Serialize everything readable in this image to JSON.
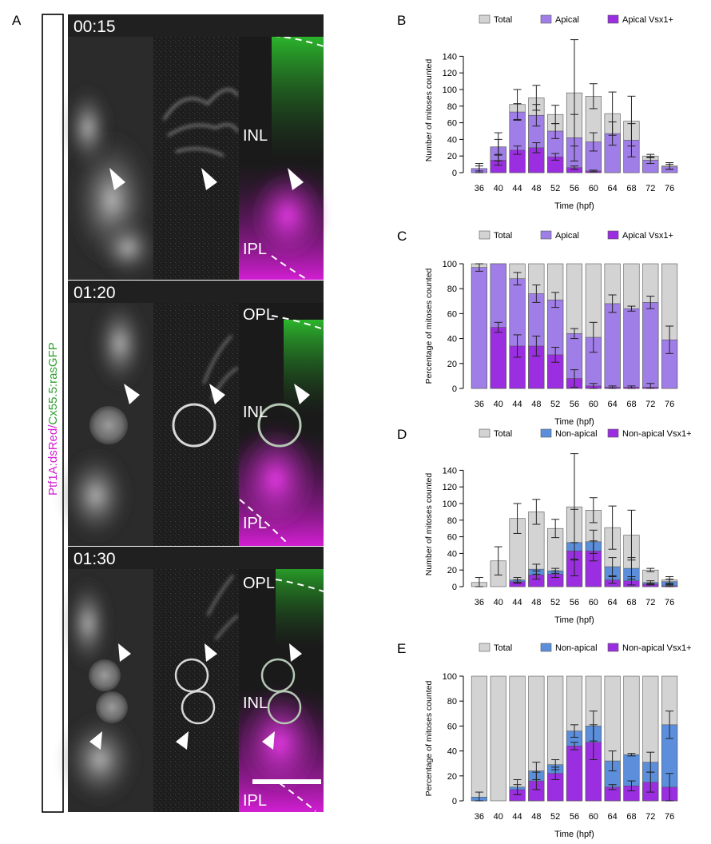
{
  "figure": {
    "panels": [
      "A",
      "B",
      "C",
      "D",
      "E"
    ]
  },
  "micro": {
    "vertical_label": {
      "part1": "Ptf1A:dsRed/",
      "part2": "Cx55.5:rasGFP"
    },
    "rows": [
      {
        "timestamp": "00:15",
        "layers": [
          "INL",
          "IPL"
        ]
      },
      {
        "timestamp": "01:20",
        "layers": [
          "OPL",
          "INL",
          "IPL"
        ]
      },
      {
        "timestamp": "01:30",
        "layers": [
          "OPL",
          "INL",
          "IPL"
        ]
      }
    ],
    "colors": {
      "magenta": "#d21ed2",
      "green": "#2fd02f"
    }
  },
  "chart_data": [
    {
      "panel": "B",
      "type": "bar",
      "categories": [
        "36",
        "40",
        "44",
        "48",
        "52",
        "56",
        "60",
        "64",
        "68",
        "72",
        "76"
      ],
      "series": [
        {
          "name": "Total",
          "color": "#d3d3d3",
          "values": [
            5,
            31,
            82,
            90,
            70,
            96,
            92,
            71,
            62,
            20,
            8
          ],
          "errors": [
            6,
            17,
            18,
            15,
            11,
            64,
            15,
            26,
            30,
            2,
            4
          ]
        },
        {
          "name": "Apical",
          "color": "#a07ee8",
          "values": [
            5,
            31,
            73,
            69,
            50,
            42,
            37,
            47,
            39,
            15,
            7
          ],
          "errors": [
            3,
            9,
            10,
            13,
            9,
            28,
            11,
            14,
            20,
            4,
            3
          ]
        },
        {
          "name": "Apical Vsx1+",
          "color": "#9a2ee0",
          "values": [
            0,
            15,
            27,
            30,
            19,
            6,
            2,
            0,
            0,
            0,
            0
          ],
          "errors": [
            0,
            6,
            5,
            6,
            4,
            2,
            1,
            0,
            0,
            0,
            0
          ]
        }
      ],
      "xlabel": "Time (hpf)",
      "ylabel": "Number of mitoses counted",
      "yticks": [
        0,
        20,
        40,
        60,
        80,
        100,
        120,
        140
      ],
      "ylim": [
        0,
        150
      ],
      "legend": "top"
    },
    {
      "panel": "C",
      "type": "bar",
      "categories": [
        "36",
        "40",
        "44",
        "48",
        "52",
        "56",
        "60",
        "64",
        "68",
        "72",
        "76"
      ],
      "series": [
        {
          "name": "Total",
          "color": "#d3d3d3",
          "values": [
            100,
            100,
            100,
            100,
            100,
            100,
            100,
            100,
            100,
            100,
            100
          ],
          "errors": [
            0,
            0,
            0,
            0,
            0,
            0,
            0,
            0,
            0,
            0,
            0
          ]
        },
        {
          "name": "Apical",
          "color": "#a07ee8",
          "values": [
            97,
            100,
            88,
            76,
            71,
            44,
            41,
            68,
            64,
            69,
            39
          ],
          "errors": [
            3,
            0,
            5,
            7,
            6,
            4,
            12,
            7,
            2,
            5,
            11
          ]
        },
        {
          "name": "Apical Vsx1+",
          "color": "#9a2ee0",
          "values": [
            0,
            49,
            34,
            34,
            27,
            8,
            2,
            1,
            1,
            1,
            0
          ],
          "errors": [
            0,
            4,
            9,
            8,
            6,
            7,
            2,
            1,
            1,
            3,
            0
          ]
        }
      ],
      "xlabel": "Time (hpf)",
      "ylabel": "Percentage of mitoses counted",
      "yticks": [
        0,
        20,
        40,
        60,
        80,
        100
      ],
      "ylim": [
        0,
        100
      ],
      "legend": "top"
    },
    {
      "panel": "D",
      "type": "bar",
      "categories": [
        "36",
        "40",
        "44",
        "48",
        "52",
        "56",
        "60",
        "64",
        "68",
        "72",
        "76"
      ],
      "series": [
        {
          "name": "Total",
          "color": "#d3d3d3",
          "values": [
            5,
            31,
            82,
            90,
            70,
            96,
            92,
            71,
            62,
            20,
            8
          ],
          "errors": [
            6,
            17,
            18,
            15,
            11,
            64,
            15,
            26,
            30,
            2,
            4
          ]
        },
        {
          "name": "Non-apical",
          "color": "#5b8fdc",
          "values": [
            0,
            0,
            8,
            21,
            19,
            53,
            54,
            24,
            22,
            5,
            6
          ],
          "errors": [
            0,
            0,
            3,
            6,
            3,
            40,
            14,
            11,
            13,
            2,
            3
          ]
        },
        {
          "name": "Non-apical Vsx1+",
          "color": "#9a2ee0",
          "values": [
            0,
            0,
            6,
            14,
            15,
            43,
            43,
            8,
            7,
            3,
            1
          ],
          "errors": [
            0,
            0,
            2,
            5,
            4,
            10,
            12,
            4,
            5,
            1,
            1
          ]
        }
      ],
      "xlabel": "Time (hpf)",
      "ylabel": "Number of mitoses counted",
      "yticks": [
        0,
        20,
        40,
        60,
        80,
        100,
        120,
        140
      ],
      "ylim": [
        0,
        150
      ],
      "legend": "top"
    },
    {
      "panel": "E",
      "type": "bar",
      "categories": [
        "36",
        "40",
        "44",
        "48",
        "52",
        "56",
        "60",
        "64",
        "68",
        "72",
        "76"
      ],
      "series": [
        {
          "name": "Total",
          "color": "#d3d3d3",
          "values": [
            100,
            100,
            100,
            100,
            100,
            100,
            100,
            100,
            100,
            100,
            100
          ],
          "errors": [
            0,
            0,
            0,
            0,
            0,
            0,
            0,
            0,
            0,
            0,
            0
          ]
        },
        {
          "name": "Non-apical",
          "color": "#5b8fdc",
          "values": [
            3,
            0,
            11,
            24,
            29,
            56,
            60,
            32,
            37,
            31,
            61
          ],
          "errors": [
            4,
            0,
            6,
            7,
            4,
            5,
            12,
            8,
            1,
            8,
            11
          ]
        },
        {
          "name": "Non-apical Vsx1+",
          "color": "#9a2ee0",
          "values": [
            0,
            0,
            9,
            16,
            22,
            44,
            47,
            11,
            12,
            15,
            11
          ],
          "errors": [
            0,
            0,
            4,
            7,
            5,
            3,
            14,
            2,
            4,
            8,
            11
          ]
        }
      ],
      "xlabel": "Time (hpf)",
      "ylabel": "Percentage of mitoses counted",
      "yticks": [
        0,
        20,
        40,
        60,
        80,
        100
      ],
      "ylim": [
        0,
        100
      ],
      "legend": "top"
    }
  ]
}
